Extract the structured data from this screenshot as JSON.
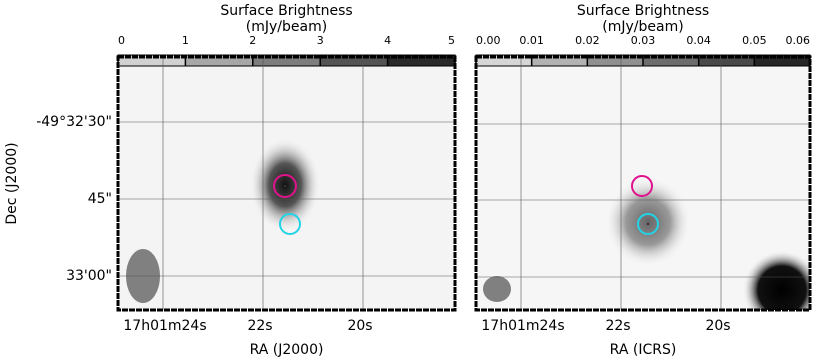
{
  "chart_data": [
    {
      "type": "image",
      "colorbar_label": "Surface Brightness",
      "colorbar_unit": "(mJy/beam)",
      "clim": [
        0,
        5
      ],
      "cticks": [
        0,
        1,
        2,
        3,
        4,
        5
      ],
      "xticks": [
        "17h01m24s",
        "22s",
        "20s"
      ],
      "yticks": [
        "-49°32'30\"",
        "45\"",
        "33'00\""
      ],
      "xlabel": "RA (J2000)",
      "ylabel": "Dec (J2000)"
    },
    {
      "type": "image",
      "colorbar_label": "Surface Brightness",
      "colorbar_unit": "(mJy/beam)",
      "clim": [
        0,
        0.06
      ],
      "cticks": [
        {
          "value": 0,
          "label": "0.00"
        },
        0.01,
        0.02,
        0.03,
        0.04,
        0.05,
        0.06
      ],
      "xticks": [
        "17h01m24s",
        "22s",
        "20s"
      ],
      "xlabel": "RA (ICRS)"
    }
  ]
}
